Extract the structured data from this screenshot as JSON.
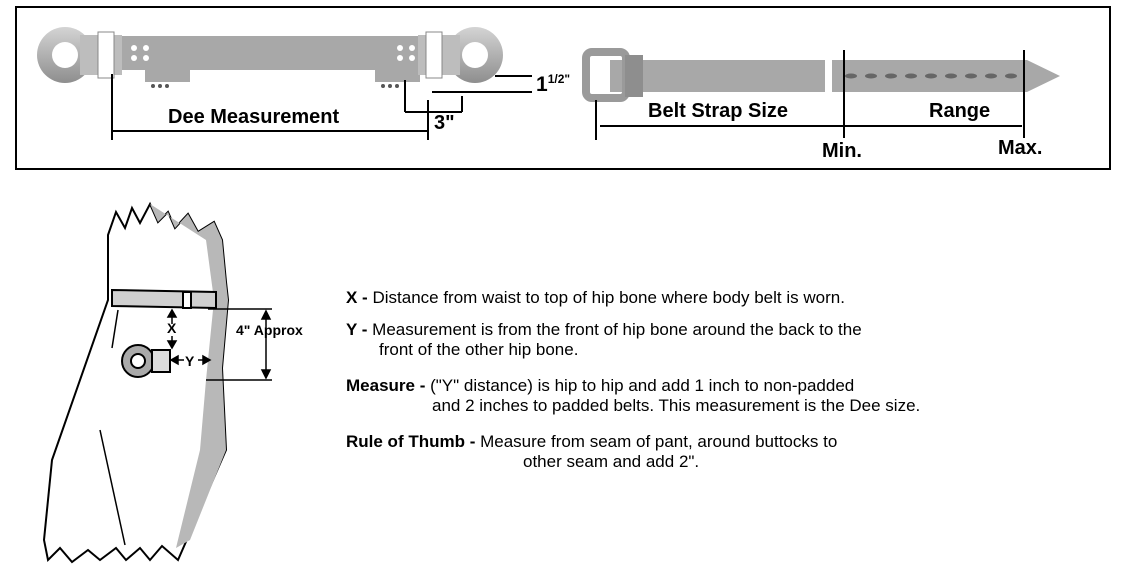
{
  "top_diagram": {
    "dee_label": "Dee Measurement",
    "three_inch_label": "3\"",
    "width_main": "1",
    "width_frac": "1/2\"",
    "belt_strap_label": "Belt Strap Size",
    "range_label": "Range",
    "min_label": "Min.",
    "max_label": "Max."
  },
  "figure": {
    "x_label": "X",
    "y_label": "Y",
    "approx_label": "4\" Approx"
  },
  "definitions": [
    {
      "term": "X -",
      "text": "Distance from waist to top of hip bone where body belt is worn.",
      "text2": ""
    },
    {
      "term": "Y -",
      "text": "Measurement is from the front of hip bone around the back to the",
      "text2": "front of the other hip bone."
    },
    {
      "term": "Measure -",
      "text": "(\"Y\" distance) is hip to hip and add 1 inch to non-padded",
      "text2": "and 2 inches to padded belts.  This measurement is the Dee size."
    },
    {
      "term": "Rule of Thumb -",
      "text": "Measure from seam of pant, around buttocks to",
      "text2": "other seam and add 2\"."
    }
  ],
  "colors": {
    "strap_gray": "#a8a8a8",
    "line": "#000000"
  }
}
